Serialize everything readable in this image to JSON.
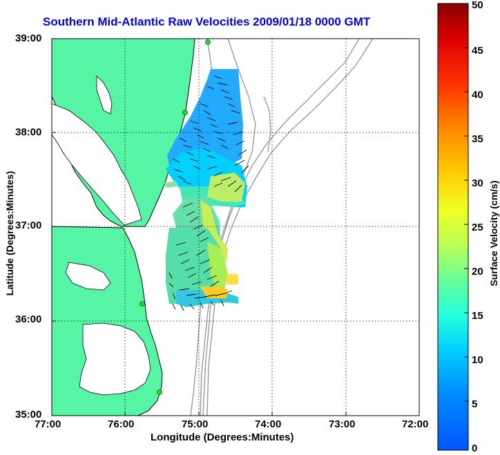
{
  "title": "Southern Mid-Atlantic Raw Velocities 2009/01/18 0000 GMT",
  "xlabel": "Longitude (Degrees:Minutes)",
  "ylabel": "Latitude (Degrees:Minutes)",
  "colorbar_label": "Surface Velocity (cm/s)",
  "x_ticks": [
    "77:00",
    "76:00",
    "75:00",
    "74:00",
    "73:00",
    "72:00"
  ],
  "y_ticks": [
    "39:00",
    "38:00",
    "37:00",
    "36:00",
    "35:00"
  ],
  "colorbar_ticks": [
    "0",
    "5",
    "10",
    "15",
    "20",
    "25",
    "30",
    "35",
    "40",
    "45",
    "50"
  ],
  "colors": {
    "land": "#55f5a5",
    "water": "#ffffff",
    "bathymetry": "#999999",
    "coast": "#000000",
    "title": "#0000ee",
    "grid": "#000000",
    "station": "#22dd22"
  },
  "map": {
    "lon_range": [
      -77,
      -72
    ],
    "lat_range": [
      35,
      39
    ],
    "colorbar_range_cm_s": [
      0,
      50
    ],
    "grid": true,
    "colormap": "jet"
  }
}
